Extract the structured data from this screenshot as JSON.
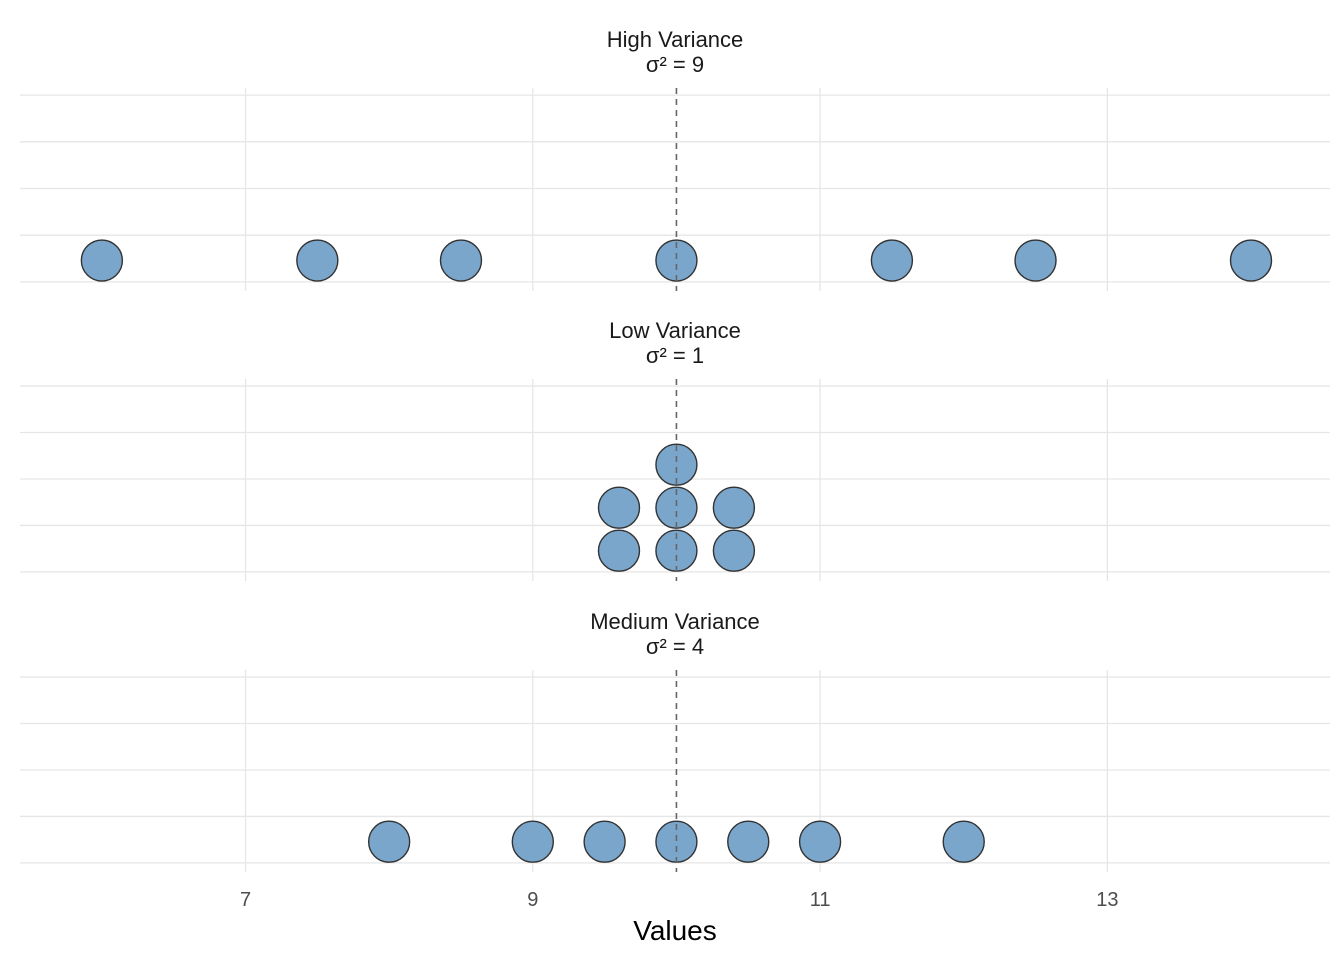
{
  "chart_data": {
    "type": "scatter",
    "subtype": "dotplot",
    "xlabel": "Values",
    "ylabel": "",
    "xlim": [
      5.43,
      14.55
    ],
    "x_ticks": [
      7,
      9,
      11,
      13
    ],
    "x_tick_labels": [
      "7",
      "9",
      "11",
      "13"
    ],
    "reference_line": {
      "x": 10,
      "style": "dashed"
    },
    "grid": true,
    "legend": "none",
    "colors": {
      "point_fill": "#7aa6cc",
      "point_stroke": "#333333",
      "grid": "#e6e6e6",
      "reference_line": "#666666"
    },
    "facets": [
      {
        "title": "High Variance",
        "subtitle": "σ² = 9",
        "points": [
          {
            "x": 6,
            "stack": 0
          },
          {
            "x": 7.5,
            "stack": 0
          },
          {
            "x": 8.5,
            "stack": 0
          },
          {
            "x": 10,
            "stack": 0
          },
          {
            "x": 11.5,
            "stack": 0
          },
          {
            "x": 12.5,
            "stack": 0
          },
          {
            "x": 14,
            "stack": 0
          }
        ]
      },
      {
        "title": "Low Variance",
        "subtitle": "σ² = 1",
        "points": [
          {
            "x": 9.6,
            "stack": 0
          },
          {
            "x": 9.6,
            "stack": 1
          },
          {
            "x": 10,
            "stack": 0
          },
          {
            "x": 10,
            "stack": 1
          },
          {
            "x": 10,
            "stack": 2
          },
          {
            "x": 10.4,
            "stack": 0
          },
          {
            "x": 10.4,
            "stack": 1
          }
        ]
      },
      {
        "title": "Medium Variance",
        "subtitle": "σ² = 4",
        "points": [
          {
            "x": 8,
            "stack": 0
          },
          {
            "x": 9,
            "stack": 0
          },
          {
            "x": 9.5,
            "stack": 0
          },
          {
            "x": 10,
            "stack": 0
          },
          {
            "x": 10.5,
            "stack": 0
          },
          {
            "x": 11,
            "stack": 0
          },
          {
            "x": 12,
            "stack": 0
          }
        ]
      }
    ]
  }
}
